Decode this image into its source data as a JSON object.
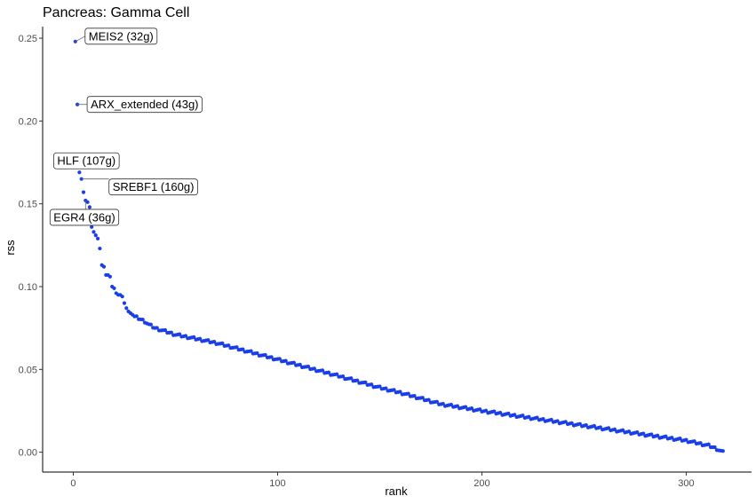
{
  "chart_data": {
    "type": "scatter",
    "title": "Pancreas: Gamma Cell",
    "xlabel": "rank",
    "ylabel": "rss",
    "xlim": [
      -15,
      332
    ],
    "ylim": [
      -0.012,
      0.257
    ],
    "x_ticks": [
      0,
      100,
      200,
      300
    ],
    "y_ticks": [
      0.0,
      0.05,
      0.1,
      0.15,
      0.2,
      0.25
    ],
    "x_tick_labels": [
      "0",
      "100",
      "200",
      "300"
    ],
    "y_tick_labels": [
      "0.00",
      "0.05",
      "0.10",
      "0.15",
      "0.20",
      "0.25"
    ],
    "grid": false,
    "point_color": "#1a3fe6",
    "top_points": [
      [
        1,
        0.248
      ],
      [
        2,
        0.21
      ],
      [
        3,
        0.169
      ],
      [
        4,
        0.165
      ],
      [
        5,
        0.157
      ],
      [
        6,
        0.152
      ],
      [
        7,
        0.151
      ],
      [
        8,
        0.148
      ],
      [
        9,
        0.136
      ],
      [
        10,
        0.133
      ],
      [
        11,
        0.131
      ],
      [
        12,
        0.129
      ],
      [
        13,
        0.123
      ],
      [
        14,
        0.113
      ],
      [
        15,
        0.112
      ],
      [
        16,
        0.107
      ],
      [
        17,
        0.107
      ],
      [
        18,
        0.106
      ],
      [
        19,
        0.1
      ],
      [
        20,
        0.099
      ],
      [
        21,
        0.096
      ],
      [
        22,
        0.095
      ],
      [
        23,
        0.095
      ],
      [
        24,
        0.094
      ],
      [
        25,
        0.09
      ],
      [
        26,
        0.087
      ],
      [
        27,
        0.085
      ],
      [
        28,
        0.084
      ],
      [
        29,
        0.083
      ],
      [
        30,
        0.082
      ]
    ],
    "curve_knots": [
      [
        30,
        0.082
      ],
      [
        35,
        0.079
      ],
      [
        37,
        0.077
      ],
      [
        40,
        0.075
      ],
      [
        50,
        0.071
      ],
      [
        70,
        0.066
      ],
      [
        100,
        0.056
      ],
      [
        130,
        0.046
      ],
      [
        150,
        0.039
      ],
      [
        160,
        0.036
      ],
      [
        180,
        0.029
      ],
      [
        200,
        0.025
      ],
      [
        250,
        0.016
      ],
      [
        300,
        0.007
      ],
      [
        311,
        0.004
      ],
      [
        315,
        0.002
      ],
      [
        318,
        0.0
      ]
    ],
    "n_points": 318,
    "annotations": [
      {
        "label": "MEIS2 (32g)",
        "rank": 1,
        "rss": 0.248
      },
      {
        "label": "ARX_extended (43g)",
        "rank": 2,
        "rss": 0.21
      },
      {
        "label": "HLF (107g)",
        "rank": 3,
        "rss": 0.169
      },
      {
        "label": "SREBF1 (160g)",
        "rank": 4,
        "rss": 0.165
      },
      {
        "label": "EGR4 (36g)",
        "rank": 6,
        "rss": 0.152
      }
    ]
  }
}
